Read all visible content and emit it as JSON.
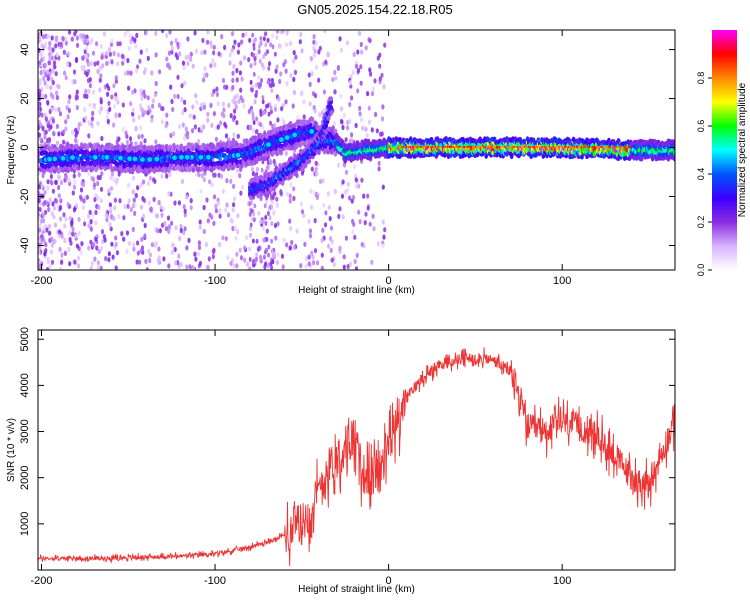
{
  "title": "GN05.2025.154.22.18.R05",
  "chart_data": [
    {
      "type": "heatmap",
      "xlabel": "Height of straight line (km)",
      "ylabel": "Frequency (Hz)",
      "xlim": [
        -202,
        165
      ],
      "ylim": [
        -50,
        48
      ],
      "xticks": [
        -200,
        -100,
        0,
        100
      ],
      "yticks": [
        -40,
        -20,
        0,
        20,
        40
      ],
      "colorbar": {
        "label": "Normalized spectral amplitude",
        "range": [
          0,
          1
        ],
        "ticks": [
          0,
          0.2,
          0.4,
          0.6,
          0.8
        ],
        "tick_labels": [
          "0.0",
          "0.2",
          "0.4",
          "0.6",
          "0.8"
        ],
        "colormap": [
          "#ffffff",
          "#d9b3ff",
          "#8a2be2",
          "#3b00ff",
          "#0055ff",
          "#00ffff",
          "#00ff00",
          "#ffff00",
          "#ff8800",
          "#ff0000",
          "#ff00ff"
        ]
      },
      "ridges": [
        {
          "x": [
            -200,
            -180,
            -160,
            -140,
            -120,
            -100,
            -85,
            -70,
            -55,
            -45,
            -38,
            -32,
            -25,
            -15,
            0,
            20,
            60,
            100,
            140,
            165
          ],
          "y": [
            -5,
            -4,
            -4,
            -5,
            -4,
            -4,
            -3,
            1,
            5,
            7,
            3,
            3,
            -2,
            -1,
            0,
            0,
            0,
            0,
            -1,
            -1
          ]
        },
        {
          "x": [
            -80,
            -70,
            -60,
            -50,
            -40,
            -33
          ],
          "y": [
            -17,
            -15,
            -10,
            -5,
            2,
            18
          ]
        }
      ]
    },
    {
      "type": "line",
      "xlabel": "Height of straight line (km)",
      "ylabel": "SNR (10 * v/v)",
      "xlim": [
        -202,
        165
      ],
      "ylim": [
        0,
        5200
      ],
      "xticks": [
        -200,
        -100,
        0,
        100
      ],
      "yticks": [
        1000,
        2000,
        3000,
        4000,
        5000
      ],
      "color": "#ee3333",
      "series": [
        {
          "x": [
            -200,
            -180,
            -160,
            -140,
            -120,
            -100,
            -90,
            -80,
            -70,
            -60,
            -50,
            -45,
            -40,
            -35,
            -30,
            -25,
            -20,
            -15,
            -10,
            -5,
            0,
            5,
            10,
            20,
            30,
            40,
            50,
            60,
            70,
            75,
            80,
            90,
            100,
            110,
            120,
            130,
            140,
            150,
            160,
            165
          ],
          "y": [
            250,
            250,
            260,
            280,
            300,
            350,
            420,
            500,
            600,
            750,
            1000,
            1300,
            1700,
            2200,
            2400,
            2700,
            2900,
            2100,
            2000,
            2200,
            2700,
            3200,
            3700,
            4200,
            4450,
            4550,
            4600,
            4550,
            4300,
            3800,
            3100,
            3000,
            3200,
            3100,
            2900,
            2500,
            2000,
            1800,
            2800,
            3200
          ]
        }
      ]
    }
  ]
}
